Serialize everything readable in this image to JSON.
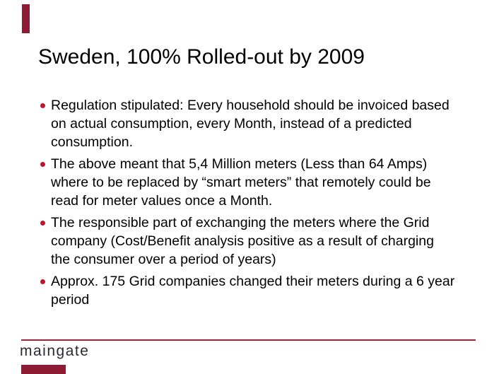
{
  "slide": {
    "title": "Sweden, 100% Rolled-out by 2009",
    "bullets": [
      {
        "lines": [
          "Regulation stipulated: Every household should be invoiced based",
          "on actual consumption, every Month, instead of a predicted",
          "consumption."
        ]
      },
      {
        "lines": [
          "The above meant that 5,4 Million meters (Less than 64 Amps)",
          "where to be replaced by “smart meters” that remotely could be",
          "read for meter values once a Month."
        ]
      },
      {
        "lines": [
          "The responsible part of exchanging the meters where the Grid",
          "company (Cost/Benefit analysis positive as a result of charging",
          "the consumer over a period of years)"
        ]
      },
      {
        "lines": [
          "Approx. 175 Grid companies changed their meters during a 6 year",
          "period"
        ]
      }
    ],
    "footer": {
      "logo_text": "maingate"
    },
    "colors": {
      "accent_maroon": "#8C1B33",
      "bullet_red": "#C0152D",
      "rule_red": "#95263B",
      "text": "#000000",
      "logo": "#2A2A2F"
    }
  }
}
